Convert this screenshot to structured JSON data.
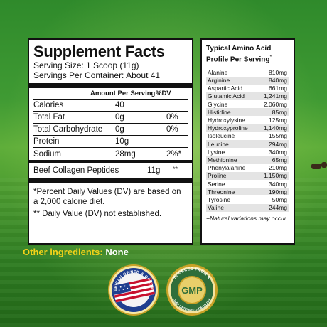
{
  "supplement_facts": {
    "title": "Supplement Facts",
    "serving_size": "Serving Size: 1 Scoop (11g)",
    "servings_per_container": "Servings Per Container: About 41",
    "header_amount": "Amount Per Serving",
    "header_dv": "%DV",
    "rows": [
      {
        "name": "Calories",
        "amount": "40",
        "dv": ""
      },
      {
        "name": "Total Fat",
        "amount": "0g",
        "dv": "0%"
      },
      {
        "name": "Total Carbohydrate",
        "amount": "0g",
        "dv": "0%"
      },
      {
        "name": "Protein",
        "amount": "10g",
        "dv": ""
      },
      {
        "name": "Sodium",
        "amount": "28mg",
        "dv": "2%*"
      }
    ],
    "collagen": {
      "name": "Beef Collagen Peptides",
      "amount": "11g",
      "dv": "**"
    },
    "footnote_1": "*Percent Daily Values (DV) are based on a 2,000 calorie diet.",
    "footnote_2": "** Daily Value (DV) not established."
  },
  "amino_profile": {
    "title": "Typical Amino Acid Profile Per Serving",
    "title_mark": "*",
    "items": [
      {
        "name": "Alanine",
        "amount": "810mg"
      },
      {
        "name": "Arginine",
        "amount": "840mg"
      },
      {
        "name": "Aspartic Acid",
        "amount": "661mg"
      },
      {
        "name": "Glutamic Acid",
        "amount": "1,241mg"
      },
      {
        "name": "Glycine",
        "amount": "2,060mg"
      },
      {
        "name": "Histidine",
        "amount": "85mg"
      },
      {
        "name": "Hydroxylysine",
        "amount": "125mg"
      },
      {
        "name": "Hydroxyproline",
        "amount": "1,140mg"
      },
      {
        "name": "Isoleucine",
        "amount": "155mg"
      },
      {
        "name": "Leucine",
        "amount": "294mg"
      },
      {
        "name": "Lysine",
        "amount": "340mg"
      },
      {
        "name": "Methionine",
        "amount": "65mg"
      },
      {
        "name": "Phenylalanine",
        "amount": "210mg"
      },
      {
        "name": "Proline",
        "amount": "1,150mg"
      },
      {
        "name": "Serine",
        "amount": "340mg"
      },
      {
        "name": "Threonine",
        "amount": "190mg"
      },
      {
        "name": "Tyrosine",
        "amount": "50mg"
      },
      {
        "name": "Valine",
        "amount": "244mg"
      }
    ],
    "note": "+Natural variations may occur"
  },
  "other_ingredients": {
    "label": "Other ingredients:",
    "value": "None"
  },
  "badges": {
    "us": {
      "text": "AMERICAN OWNED & OPERATED",
      "icon": "us-flag-icon"
    },
    "gmp": {
      "top_text": "SOURCED FROM A",
      "bottom_text": "GMP CERTIFIED FACILITY",
      "center": "GMP",
      "icon": "gmp-seal-icon"
    }
  },
  "colors": {
    "accent_yellow": "#f2d21a",
    "badge_gold": "#c9a227",
    "background_green": "#3f9a33"
  }
}
